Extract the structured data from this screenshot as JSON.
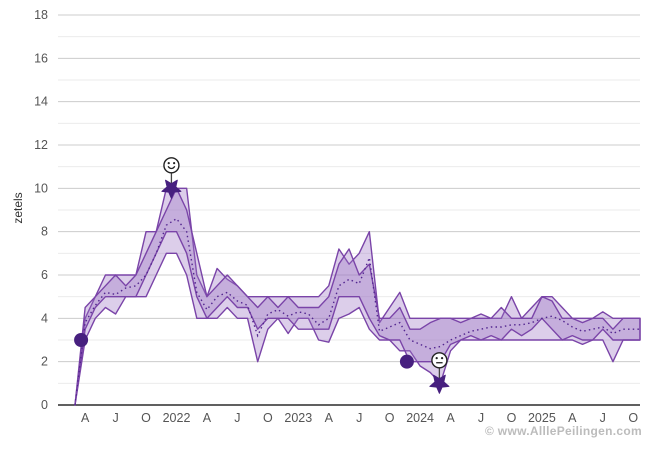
{
  "watermark": "© www.AlllePeilingen.com",
  "chart_data": {
    "type": "area",
    "title": "",
    "xlabel": "",
    "ylabel": "zetels",
    "ylim": [
      0,
      18
    ],
    "y_ticks": [
      0,
      2,
      4,
      6,
      8,
      10,
      12,
      14,
      16,
      18
    ],
    "grid": "on",
    "legend": "none",
    "x_start_month": "2021-03",
    "x_months_span": 55,
    "x_ticks": [
      {
        "t": 1,
        "label": "A"
      },
      {
        "t": 4,
        "label": "J"
      },
      {
        "t": 7,
        "label": "O"
      },
      {
        "t": 10,
        "label": "2022"
      },
      {
        "t": 13,
        "label": "A"
      },
      {
        "t": 16,
        "label": "J"
      },
      {
        "t": 19,
        "label": "O"
      },
      {
        "t": 22,
        "label": "2023"
      },
      {
        "t": 25,
        "label": "A"
      },
      {
        "t": 28,
        "label": "J"
      },
      {
        "t": 31,
        "label": "O"
      },
      {
        "t": 34,
        "label": "2024"
      },
      {
        "t": 37,
        "label": "A"
      },
      {
        "t": 40,
        "label": "J"
      },
      {
        "t": 43,
        "label": "O"
      },
      {
        "t": 46,
        "label": "2025"
      },
      {
        "t": 49,
        "label": "A"
      },
      {
        "t": 52,
        "label": "J"
      },
      {
        "t": 55,
        "label": "O"
      }
    ],
    "bands": [
      {
        "name": "poll-band-a",
        "lower": [
          0,
          3,
          4,
          4.5,
          4.2,
          5,
          5,
          5,
          6,
          7,
          7,
          6,
          4,
          4,
          4,
          4.5,
          4,
          4,
          2,
          3.5,
          4,
          3.3,
          4,
          4,
          3,
          2.9,
          4,
          4.2,
          4.5,
          3.5,
          3,
          3,
          2.5,
          2.5,
          1.8,
          1.5,
          1,
          2.5,
          3,
          3,
          3,
          3,
          3,
          3,
          3,
          3,
          3,
          3,
          3,
          3,
          2.8,
          3,
          3,
          2,
          3,
          3
        ],
        "upper": [
          0,
          4,
          5,
          6,
          6,
          6,
          6,
          8,
          8,
          10,
          10,
          10,
          6,
          5,
          6.3,
          5.8,
          5.5,
          5,
          5,
          5,
          5,
          5,
          5,
          5,
          5,
          5.5,
          7.2,
          6.5,
          7,
          8,
          3.8,
          4.5,
          5.2,
          4,
          4,
          4,
          4,
          4,
          4,
          4,
          4.2,
          4,
          4,
          5,
          4,
          4.5,
          5,
          5,
          4.5,
          4,
          4,
          4,
          4.3,
          4,
          4,
          4
        ]
      },
      {
        "name": "poll-band-b",
        "lower": [
          0,
          3.5,
          4.5,
          5,
          5,
          5,
          5,
          6,
          7,
          8,
          8,
          7,
          5,
          4,
          4.5,
          5,
          4.5,
          4.5,
          3.5,
          4,
          4,
          4,
          3.5,
          3.5,
          3.5,
          3.5,
          5,
          5,
          5,
          4,
          3.2,
          3,
          3,
          2,
          2,
          2,
          2,
          2.8,
          3,
          3.2,
          3,
          3.2,
          3,
          3.5,
          3.2,
          3.5,
          4,
          3.5,
          3,
          3.2,
          3,
          3,
          3.5,
          3,
          3,
          3
        ],
        "upper": [
          0,
          4.5,
          5,
          5.5,
          6,
          5.5,
          6,
          7,
          8,
          9,
          10,
          9,
          7,
          5,
          5.5,
          6,
          5.5,
          5,
          4.5,
          5,
          4.5,
          5,
          4.5,
          4.5,
          4.5,
          5,
          6.5,
          7.2,
          6,
          6.5,
          4,
          4,
          4.5,
          3.5,
          3.5,
          3.8,
          4,
          4,
          3.8,
          4,
          4,
          4,
          4.5,
          4,
          4,
          4,
          5,
          4.8,
          4,
          4,
          3.8,
          4,
          4,
          3.5,
          4,
          4
        ]
      }
    ],
    "average": [
      0,
      3.8,
      4.6,
      5.2,
      5.1,
      5.4,
      5.5,
      6,
      7,
      8.3,
      8.6,
      8,
      5.2,
      4.4,
      5,
      5.2,
      4.8,
      4.6,
      3.2,
      4.2,
      4.4,
      4.1,
      4.3,
      4.2,
      3.7,
      4,
      5.5,
      5.8,
      5.6,
      6.8,
      3.4,
      3.6,
      3.8,
      3,
      2.8,
      2.6,
      2.7,
      3,
      3.2,
      3.4,
      3.5,
      3.6,
      3.6,
      3.7,
      3.7,
      3.8,
      4,
      4.1,
      3.9,
      3.6,
      3.4,
      3.5,
      3.6,
      3.3,
      3.5,
      3.5
    ],
    "markers": {
      "election_results": [
        {
          "t": 0.6,
          "seats": 3
        },
        {
          "t": 32.7,
          "seats": 2
        }
      ],
      "poll_records": [
        {
          "t": 9.5,
          "seats": 10,
          "mood": "happy"
        },
        {
          "t": 35.9,
          "seats": 1,
          "mood": "sad"
        }
      ]
    },
    "colors": {
      "band_fill": "#9b72c4",
      "band_stroke": "#7a44a8",
      "average_line": "#52258f",
      "marker": "#47207f",
      "face_stroke": "#222222",
      "connector": "#444444",
      "grid_major": "#cccccc",
      "grid_minor": "#ebebeb",
      "axis": "#2b2b2b",
      "tick_text": "#555555",
      "watermark": "#bcbcbc"
    }
  }
}
